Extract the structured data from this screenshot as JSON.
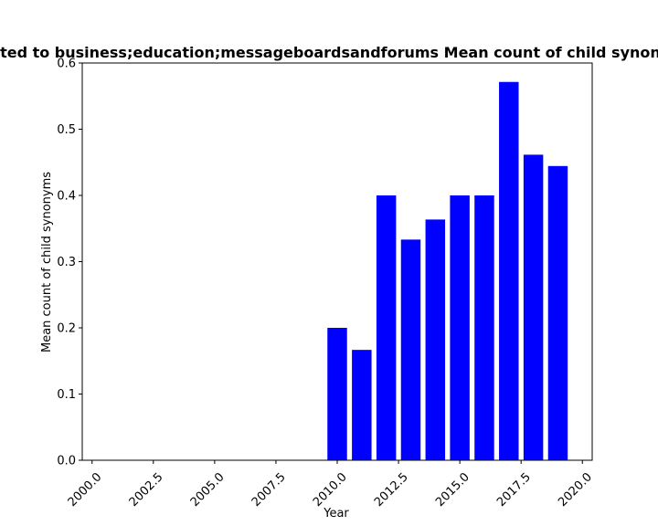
{
  "chart_data": {
    "type": "bar",
    "title": "Related to business;education;messageboardsandforums Mean count of child synonyms",
    "xlabel": "Year",
    "ylabel": "Mean count of child synonyms",
    "x": [
      2010,
      2011,
      2012,
      2013,
      2014,
      2015,
      2016,
      2017,
      2018,
      2019
    ],
    "values": [
      0.2,
      0.1667,
      0.4,
      0.3333,
      0.3636,
      0.4,
      0.4,
      0.5714,
      0.4615,
      0.4444
    ],
    "xlim": [
      1999.6,
      2020.4
    ],
    "ylim": [
      0,
      0.6
    ],
    "xticks": [
      2000.0,
      2002.5,
      2005.0,
      2007.5,
      2010.0,
      2012.5,
      2015.0,
      2017.5,
      2020.0
    ],
    "xtick_labels": [
      "2000.0",
      "2002.5",
      "2005.0",
      "2007.5",
      "2010.0",
      "2012.5",
      "2015.0",
      "2017.5",
      "2020.0"
    ],
    "yticks": [
      0.0,
      0.1,
      0.2,
      0.3,
      0.4,
      0.5,
      0.6
    ],
    "ytick_labels": [
      "0.0",
      "0.1",
      "0.2",
      "0.3",
      "0.4",
      "0.5",
      "0.6"
    ],
    "bar_color": "#0000ff",
    "grid": false
  }
}
